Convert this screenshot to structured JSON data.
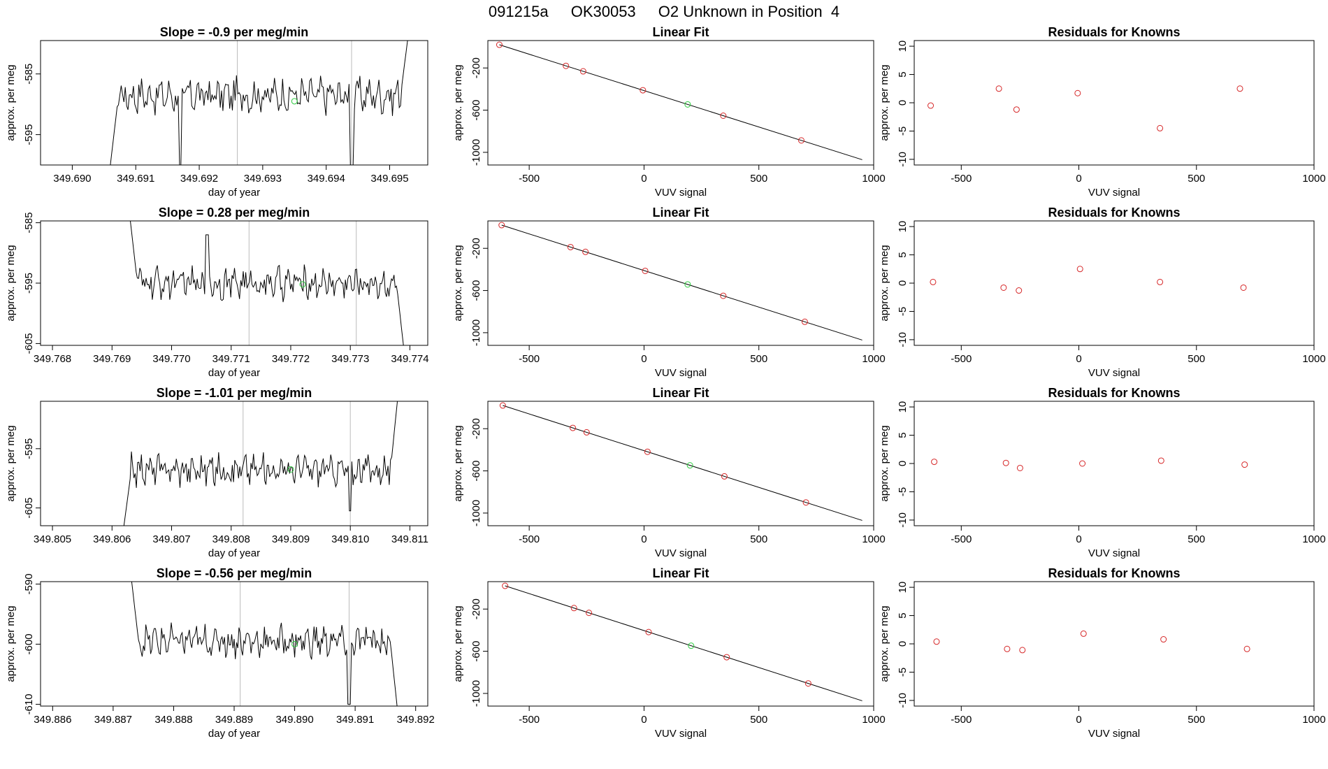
{
  "header": {
    "run_id": "091215a",
    "cylinder": "OK30053",
    "label": "O2 Unknown in Position  4"
  },
  "chart_data": [
    {
      "row": 0,
      "series_panel": {
        "type": "line",
        "title": "Slope =  -0.9  per meg/min",
        "xlabel": "day of year",
        "ylabel": "approx. per meg",
        "xlim": [
          349.6895,
          349.6956
        ],
        "ylim": [
          -600.0,
          -579.5
        ],
        "xticks": [
          "349.690",
          "349.691",
          "349.692",
          "349.693",
          "349.694",
          "349.695"
        ],
        "xtick_values": [
          349.69,
          349.691,
          349.692,
          349.693,
          349.694,
          349.695
        ],
        "ytick_values": [
          -585,
          -595
        ],
        "vlines": [
          349.6926,
          349.6944
        ],
        "line_start": 349.6906,
        "line_end": 349.6953,
        "baseline": -588.5,
        "noise": 2.2,
        "green_point": [
          349.6935,
          -589.5
        ],
        "edge_start": -600.0,
        "edge_end": -578.0,
        "spike_x": [
          349.6917,
          349.6944
        ],
        "spike_y": [
          -600.0,
          -600.0
        ]
      },
      "fit_panel": {
        "type": "scatter",
        "title": "Linear Fit",
        "xlabel": "VUV signal",
        "ylabel": "approx. per meg",
        "xlim": [
          -680,
          1000
        ],
        "ylim": [
          -1120,
          60
        ],
        "xticks": [
          -500,
          0,
          500,
          1000
        ],
        "yticks": [
          -200,
          -600,
          -1000
        ],
        "line": [
          [
            -630,
            20
          ],
          [
            950,
            -1070
          ]
        ],
        "red_x": [
          -630,
          -340,
          -265,
          -5,
          345,
          685
        ],
        "green_x": [
          190
        ],
        "residuals": [
          -0.5,
          2.5,
          -1.2,
          1.7,
          -4.5,
          2.5
        ]
      },
      "residual_panel": {
        "type": "scatter",
        "title": "Residuals for Knowns",
        "xlabel": "VUV signal",
        "ylabel": "approx. per meg",
        "xlim": [
          -700,
          1000
        ],
        "ylim": [
          -11,
          11
        ],
        "xticks": [
          -500,
          0,
          500,
          1000
        ],
        "yticks": [
          10,
          5,
          0,
          -5,
          -10
        ]
      }
    },
    {
      "row": 1,
      "series_panel": {
        "type": "line",
        "title": "Slope =  0.28  per meg/min",
        "xlabel": "day of year",
        "ylabel": "approx. per meg",
        "xlim": [
          349.7678,
          349.7743
        ],
        "ylim": [
          -605.3,
          -584.7
        ],
        "xticks": [
          "349.768",
          "349.769",
          "349.770",
          "349.771",
          "349.772",
          "349.773",
          "349.774"
        ],
        "xtick_values": [
          349.768,
          349.769,
          349.77,
          349.771,
          349.772,
          349.773,
          349.774
        ],
        "ytick_values": [
          -585,
          -595,
          -605
        ],
        "vlines": [
          349.7713,
          349.7731
        ],
        "line_start": 349.7693,
        "line_end": 349.7739,
        "baseline": -595.0,
        "noise": 2.0,
        "green_point": [
          349.7722,
          -595.2
        ],
        "edge_start": -584.0,
        "edge_end": -606.0,
        "spike_x": [
          349.7706
        ],
        "spike_y": [
          -587.0
        ]
      },
      "fit_panel": {
        "type": "scatter",
        "title": "Linear Fit",
        "xlabel": "VUV signal",
        "ylabel": "approx. per meg",
        "xlim": [
          -680,
          1000
        ],
        "ylim": [
          -1120,
          60
        ],
        "xticks": [
          -500,
          0,
          500,
          1000
        ],
        "yticks": [
          -200,
          -600,
          -1000
        ],
        "line": [
          [
            -620,
            20
          ],
          [
            950,
            -1070
          ]
        ],
        "red_x": [
          -620,
          -320,
          -255,
          5,
          345,
          700
        ],
        "green_x": [
          190
        ],
        "residuals": [
          0.2,
          -0.8,
          -1.3,
          2.5,
          0.2,
          -0.8
        ]
      },
      "residual_panel": {
        "type": "scatter",
        "title": "Residuals for Knowns",
        "xlabel": "VUV signal",
        "ylabel": "approx. per meg",
        "xlim": [
          -700,
          1000
        ],
        "ylim": [
          -11,
          11
        ],
        "xticks": [
          -500,
          0,
          500,
          1000
        ],
        "yticks": [
          10,
          5,
          0,
          -5,
          -10
        ]
      }
    },
    {
      "row": 2,
      "series_panel": {
        "type": "line",
        "title": "Slope =  -1.01  per meg/min",
        "xlabel": "day of year",
        "ylabel": "approx. per meg",
        "xlim": [
          349.8048,
          349.8113
        ],
        "ylim": [
          -608.0,
          -587.0
        ],
        "xticks": [
          "349.805",
          "349.806",
          "349.807",
          "349.808",
          "349.809",
          "349.810",
          "349.811"
        ],
        "xtick_values": [
          349.805,
          349.806,
          349.807,
          349.808,
          349.809,
          349.81,
          349.811
        ],
        "ytick_values": [
          -595,
          -605
        ],
        "vlines": [
          349.8082,
          349.81
        ],
        "line_start": 349.8062,
        "line_end": 349.8108,
        "baseline": -598.5,
        "noise": 2.0,
        "green_point": [
          349.809,
          -598.5
        ],
        "edge_start": -608.0,
        "edge_end": -586.0,
        "spike_x": [
          349.81
        ],
        "spike_y": [
          -605.5
        ]
      },
      "fit_panel": {
        "type": "scatter",
        "title": "Linear Fit",
        "xlabel": "VUV signal",
        "ylabel": "approx. per meg",
        "xlim": [
          -680,
          1000
        ],
        "ylim": [
          -1120,
          60
        ],
        "xticks": [
          -500,
          0,
          500,
          1000
        ],
        "yticks": [
          -200,
          -600,
          -1000
        ],
        "line": [
          [
            -615,
            20
          ],
          [
            950,
            -1070
          ]
        ],
        "red_x": [
          -615,
          -310,
          -250,
          15,
          350,
          705
        ],
        "green_x": [
          200
        ],
        "residuals": [
          0.3,
          0.1,
          -0.8,
          0.0,
          0.5,
          -0.2
        ]
      },
      "residual_panel": {
        "type": "scatter",
        "title": "Residuals for Knowns",
        "xlabel": "VUV signal",
        "ylabel": "approx. per meg",
        "xlim": [
          -700,
          1000
        ],
        "ylim": [
          -11,
          11
        ],
        "xticks": [
          -500,
          0,
          500,
          1000
        ],
        "yticks": [
          10,
          5,
          0,
          -5,
          -10
        ]
      }
    },
    {
      "row": 3,
      "series_panel": {
        "type": "line",
        "title": "Slope =  -0.56  per meg/min",
        "xlabel": "day of year",
        "ylabel": "approx. per meg",
        "xlim": [
          349.8858,
          349.8922
        ],
        "ylim": [
          -610.3,
          -589.6
        ],
        "xticks": [
          "349.886",
          "349.887",
          "349.888",
          "349.889",
          "349.890",
          "349.891",
          "349.892"
        ],
        "xtick_values": [
          349.886,
          349.887,
          349.888,
          349.889,
          349.89,
          349.891,
          349.892
        ],
        "ytick_values": [
          -590,
          -600,
          -610
        ],
        "vlines": [
          349.8891,
          349.8909
        ],
        "line_start": 349.8873,
        "line_end": 349.8917,
        "baseline": -599.5,
        "noise": 2.0,
        "green_point": [
          349.89,
          -600.0
        ],
        "edge_start": -589.0,
        "edge_end": -611.0,
        "spike_x": [
          349.8909
        ],
        "spike_y": [
          -610.0
        ]
      },
      "fit_panel": {
        "type": "scatter",
        "title": "Linear Fit",
        "xlabel": "VUV signal",
        "ylabel": "approx. per meg",
        "xlim": [
          -680,
          1000
        ],
        "ylim": [
          -1120,
          60
        ],
        "xticks": [
          -500,
          0,
          500,
          1000
        ],
        "yticks": [
          -200,
          -600,
          -1000
        ],
        "line": [
          [
            -605,
            20
          ],
          [
            950,
            -1070
          ]
        ],
        "red_x": [
          -605,
          -305,
          -240,
          20,
          360,
          715
        ],
        "green_x": [
          205
        ],
        "residuals": [
          0.4,
          -0.9,
          -1.1,
          1.8,
          0.8,
          -0.9
        ]
      },
      "residual_panel": {
        "type": "scatter",
        "title": "Residuals for Knowns",
        "xlabel": "VUV signal",
        "ylabel": "approx. per meg",
        "xlim": [
          -700,
          1000
        ],
        "ylim": [
          -11,
          11
        ],
        "xticks": [
          -500,
          0,
          500,
          1000
        ],
        "yticks": [
          10,
          5,
          0,
          -5,
          -10
        ]
      }
    }
  ],
  "colors": {
    "line": "#000000",
    "known_points": "#d62728",
    "unknown_point": "#2ecc40",
    "vline": "#bbbbbb"
  }
}
